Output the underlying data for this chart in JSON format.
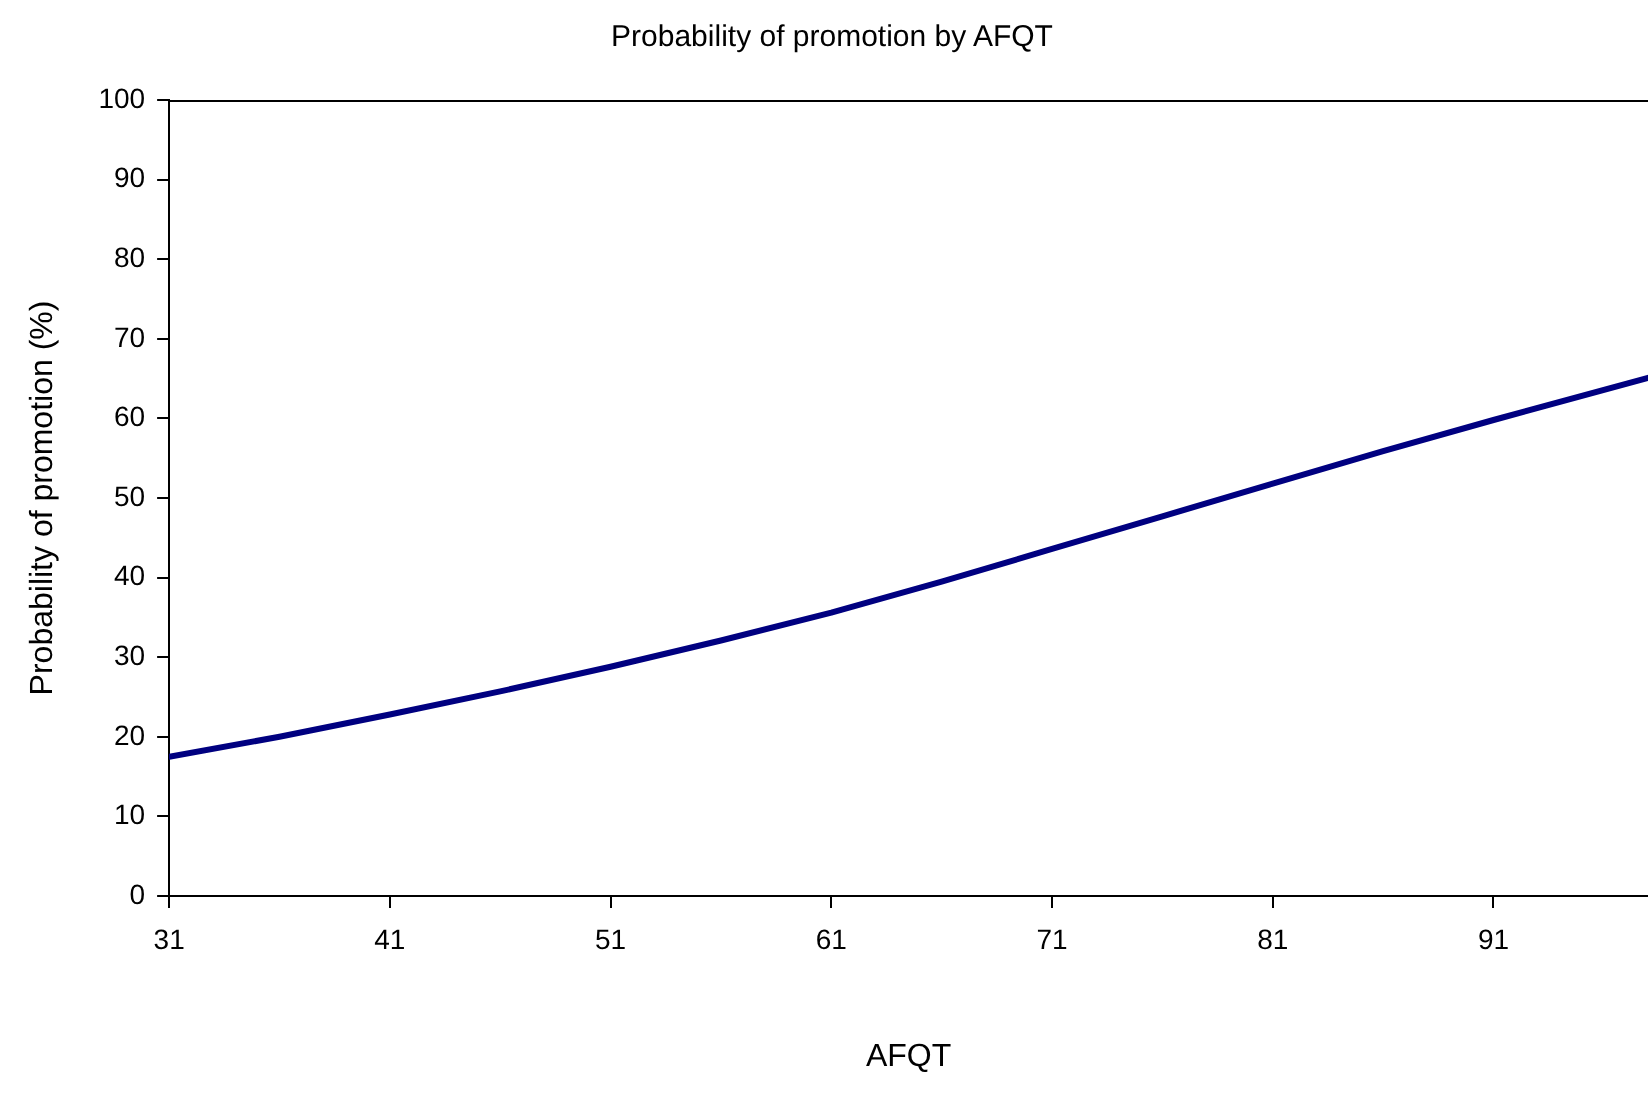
{
  "chart_data": {
    "type": "line",
    "title": "Probability of promotion by AFQT",
    "xlabel": "AFQT",
    "ylabel": "Probability of promotion (%)",
    "x": [
      31,
      36,
      41,
      46,
      51,
      56,
      61,
      66,
      71,
      76,
      81,
      86,
      91,
      98
    ],
    "series": [
      {
        "color": "#000080",
        "values": [
          17.5,
          20.0,
          22.8,
          25.7,
          28.8,
          32.1,
          35.6,
          39.5,
          43.6,
          47.7,
          51.8,
          55.9,
          59.8,
          65.1
        ]
      }
    ],
    "xlim": [
      31,
      98
    ],
    "xticks": [
      31,
      41,
      51,
      61,
      71,
      81,
      91
    ],
    "ylim": [
      0,
      100
    ],
    "yticks": [
      0,
      10,
      20,
      30,
      40,
      50,
      60,
      70,
      80,
      90,
      100
    ],
    "grid": false,
    "legend": false,
    "marker": "none",
    "line_style": "solid"
  }
}
